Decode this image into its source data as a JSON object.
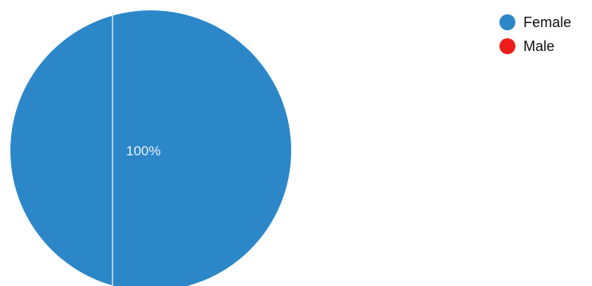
{
  "chart_data": {
    "type": "pie",
    "slices": [
      {
        "name": "Female",
        "value": 100,
        "color": "#2b87c8",
        "label": "100%"
      },
      {
        "name": "Male",
        "value": 0,
        "color": "#ee1c1c",
        "label": ""
      }
    ],
    "legend": {
      "position": "top-right"
    }
  }
}
